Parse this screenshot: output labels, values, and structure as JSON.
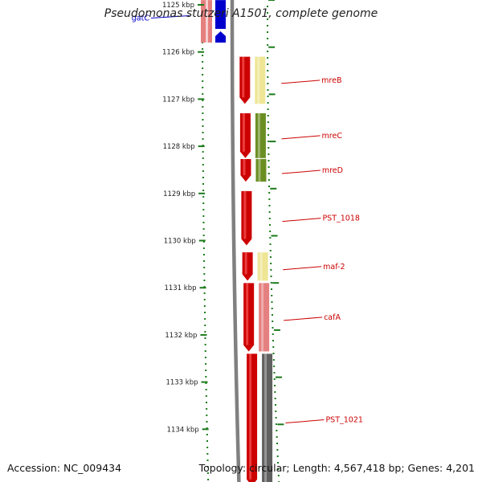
{
  "title": "Pseudomonas stutzeri A1501, complete genome",
  "accession": "Accession: NC_009434",
  "topology": "Topology: circular; Length: 4,567,418 bp; Genes: 4,201",
  "kbp_scale": {
    "first_kbp": 1125,
    "labels": [
      "1125 kbp",
      "1126 kbp",
      "1127 kbp",
      "1128 kbp",
      "1129 kbp",
      "1130 kbp",
      "1131 kbp",
      "1132 kbp",
      "1133 kbp",
      "1134 kbp"
    ]
  },
  "genes": [
    {
      "name": "gatC",
      "color": "#0000cc",
      "start_kbp": 1124.9,
      "end_kbp": 1125.8,
      "strand": "minus"
    },
    {
      "name": "mreB",
      "color": "#cc0000",
      "start_kbp": 1126.1,
      "end_kbp": 1127.1,
      "strand": "plus",
      "cog_color": "#eee695"
    },
    {
      "name": "mreC",
      "color": "#cc0000",
      "start_kbp": 1127.3,
      "end_kbp": 1128.25,
      "strand": "plus",
      "cog_color": "#6b8e23"
    },
    {
      "name": "mreD",
      "color": "#cc0000",
      "start_kbp": 1128.27,
      "end_kbp": 1128.75,
      "strand": "plus",
      "cog_color": "#6b8e23"
    },
    {
      "name": "PST_1018",
      "color": "#cc0000",
      "start_kbp": 1128.95,
      "end_kbp": 1130.1,
      "strand": "plus"
    },
    {
      "name": "maf-2",
      "color": "#cc0000",
      "start_kbp": 1130.25,
      "end_kbp": 1130.85,
      "strand": "plus",
      "cog_color": "#eee695"
    },
    {
      "name": "cafA",
      "color": "#cc0000",
      "start_kbp": 1130.9,
      "end_kbp": 1132.35,
      "strand": "plus",
      "cog_color": "#e58080"
    },
    {
      "name": "PST_1021",
      "color": "#cc0000",
      "start_kbp": 1132.4,
      "end_kbp": 1135.2,
      "strand": "plus",
      "cog_color": "#606060"
    }
  ]
}
